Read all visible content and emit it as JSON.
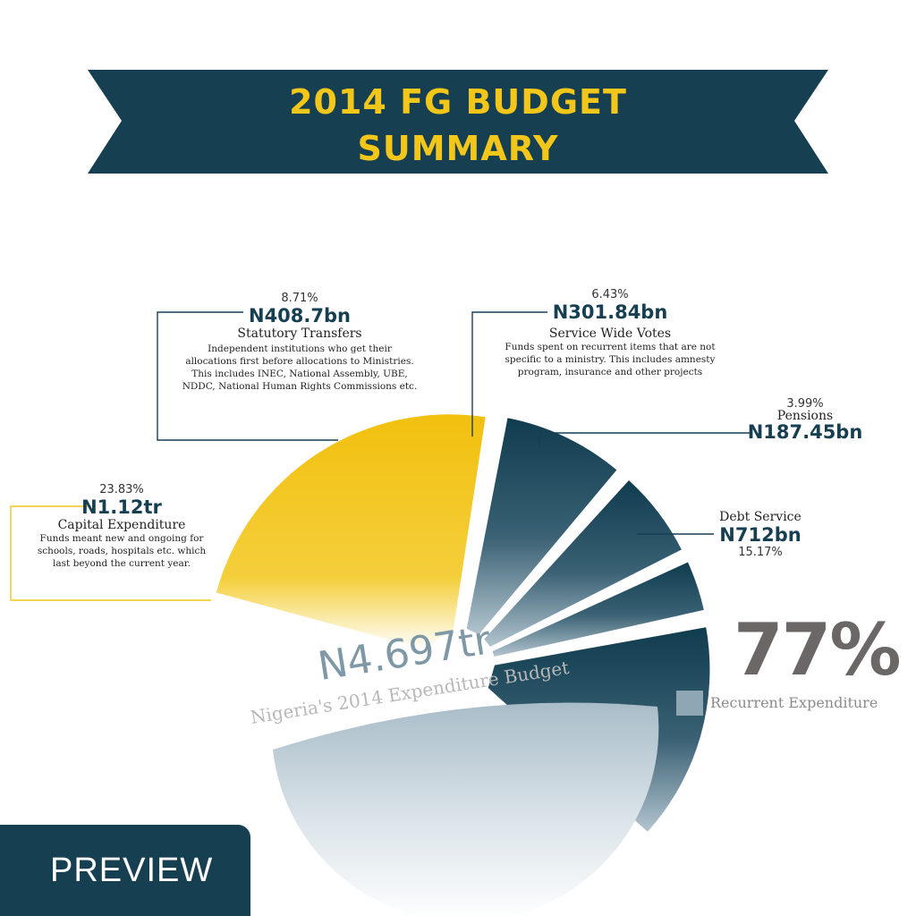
{
  "banner": {
    "line1": "2014 FG BUDGET",
    "line2": "SUMMARY",
    "color": "#173f52",
    "text_color": "#f3c61a"
  },
  "chart_data": {
    "type": "pie",
    "title": "N4.697tr",
    "subtitle": "Nigeria's 2014 Expenditure Budget",
    "total": "N4.697tr",
    "slices": [
      {
        "name": "Capital Expenditure",
        "amount": "N1.12tr",
        "percent": 23.83,
        "percent_label": "23.83%",
        "description": "Funds meant new and ongoing for schools, roads, hospitals etc. which last beyond the current year.",
        "color": "#f3c61a"
      },
      {
        "name": "Statutory Transfers",
        "amount": "N408.7bn",
        "percent": 8.71,
        "percent_label": "8.71%",
        "description": "Independent institutions who get their allocations first before allocations to Ministries. This includes INEC, National Assembly, UBE, NDDC, National Human Rights Commissions etc.",
        "color": "#173f52"
      },
      {
        "name": "Service Wide Votes",
        "amount": "N301.84bn",
        "percent": 6.43,
        "percent_label": "6.43%",
        "description": "Funds spent on recurrent items that are not specific to a ministry. This includes amnesty program, insurance and other projects",
        "color": "#173f52"
      },
      {
        "name": "Pensions",
        "amount": "N187.45bn",
        "percent": 3.99,
        "percent_label": "3.99%",
        "description": "",
        "color": "#173f52"
      },
      {
        "name": "Debt Service",
        "amount": "N712bn",
        "percent": 15.17,
        "percent_label": "15.17%",
        "description": "",
        "color": "#173f52"
      }
    ],
    "recurrent": {
      "percent_label": "77%",
      "label": "Recurrent Expenditure",
      "color": "#8fa7b5"
    }
  },
  "badge": {
    "label": "PREVIEW"
  }
}
